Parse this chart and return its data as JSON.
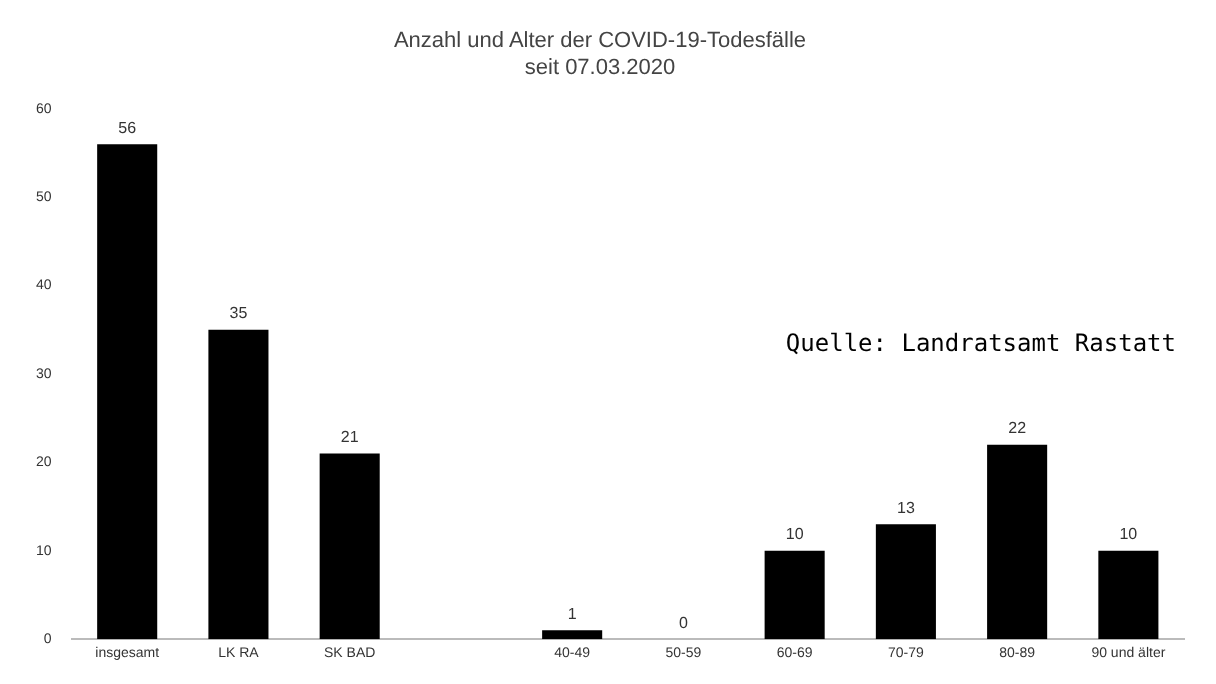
{
  "chart_data": {
    "type": "bar",
    "title": "Anzahl und Alter der COVID-19-Todesfälle",
    "subtitle": "seit 07.03.2020",
    "categories": [
      "insgesamt",
      "LK RA",
      "SK BAD",
      null,
      "40-49",
      "50-59",
      "60-69",
      "70-79",
      "80-89",
      "90 und älter"
    ],
    "values": [
      56,
      35,
      21,
      null,
      1,
      0,
      10,
      13,
      22,
      10
    ],
    "color": "#000000",
    "ylim": [
      0,
      60
    ],
    "yticks": [
      0,
      10,
      20,
      30,
      40,
      50,
      60
    ],
    "grid": false,
    "data_labels": true,
    "annotations": [
      "Quelle: Landratsamt Rastatt"
    ]
  }
}
